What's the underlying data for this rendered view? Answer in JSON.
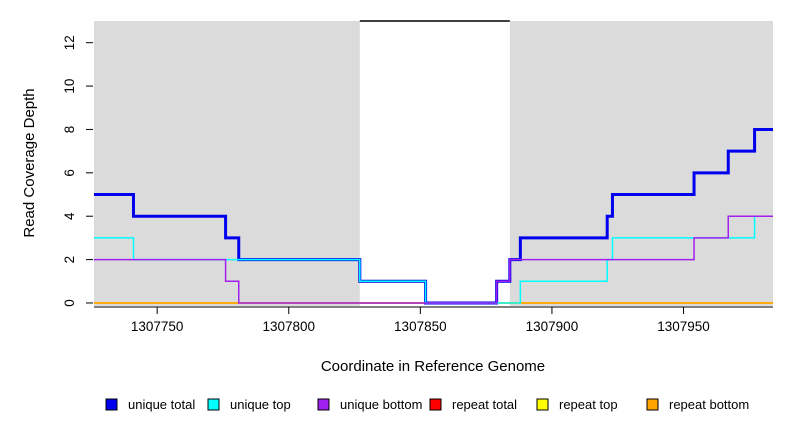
{
  "chart_data": {
    "type": "line",
    "subtype": "step-coverage-plot",
    "title": "",
    "xlabel": "Coordinate in Reference Genome",
    "ylabel": "Read Coverage Depth",
    "xlim": [
      1307726,
      1307984
    ],
    "ylim": [
      -0.14,
      13.0
    ],
    "x_ticks": [
      1307750,
      1307800,
      1307850,
      1307900,
      1307950
    ],
    "y_ticks": [
      0,
      2,
      4,
      6,
      8,
      10,
      12
    ],
    "grid": false,
    "background_color": "#ffffff",
    "shade_color": "#DBDBDB",
    "shaded_regions": [
      {
        "x0": 1307726,
        "x1": 1307827
      },
      {
        "x0": 1307884,
        "x1": 1307984
      }
    ],
    "top_segment": {
      "x0": 1307827,
      "x1": 1307884,
      "y": 13,
      "color": "#000000"
    },
    "series": [
      {
        "name": "repeat total",
        "color": "#FF0000",
        "width": 1.5,
        "points": [
          [
            1307726,
            0
          ],
          [
            1307984,
            0
          ]
        ]
      },
      {
        "name": "repeat top",
        "color": "#FFFF00",
        "width": 1.5,
        "points": [
          [
            1307726,
            0
          ],
          [
            1307984,
            0
          ]
        ]
      },
      {
        "name": "repeat bottom",
        "color": "#FFA500",
        "width": 1.5,
        "points": [
          [
            1307726,
            0
          ],
          [
            1307984,
            0
          ]
        ]
      },
      {
        "name": "unique total",
        "color": "#0000EE",
        "width": 3,
        "points": [
          [
            1307726,
            5
          ],
          [
            1307741,
            4
          ],
          [
            1307776,
            3
          ],
          [
            1307781,
            2
          ],
          [
            1307827,
            1
          ],
          [
            1307852,
            0
          ],
          [
            1307879,
            1
          ],
          [
            1307884,
            2
          ],
          [
            1307888,
            3
          ],
          [
            1307921,
            4
          ],
          [
            1307923,
            5
          ],
          [
            1307954,
            6
          ],
          [
            1307967,
            7
          ],
          [
            1307977,
            8
          ],
          [
            1307984,
            8
          ]
        ]
      },
      {
        "name": "unique top",
        "color": "#00FFFF",
        "width": 1.5,
        "points": [
          [
            1307726,
            3
          ],
          [
            1307741,
            2
          ],
          [
            1307827,
            1
          ],
          [
            1307852,
            0
          ],
          [
            1307888,
            1
          ],
          [
            1307921,
            2
          ],
          [
            1307923,
            3
          ],
          [
            1307977,
            4
          ],
          [
            1307984,
            4
          ]
        ]
      },
      {
        "name": "unique bottom",
        "color": "#A020F0",
        "width": 1.5,
        "points": [
          [
            1307726,
            2
          ],
          [
            1307776,
            1
          ],
          [
            1307781,
            0
          ],
          [
            1307879,
            1
          ],
          [
            1307884,
            2
          ],
          [
            1307954,
            3
          ],
          [
            1307967,
            4
          ],
          [
            1307984,
            4
          ]
        ]
      }
    ],
    "legend": [
      {
        "label": "unique total",
        "color": "#0000EE"
      },
      {
        "label": "unique top",
        "color": "#00FFFF"
      },
      {
        "label": "unique bottom",
        "color": "#A020F0"
      },
      {
        "label": "repeat total",
        "color": "#FF0000"
      },
      {
        "label": "repeat top",
        "color": "#FFFF00"
      },
      {
        "label": "repeat bottom",
        "color": "#FFA500"
      }
    ],
    "legend_position": "bottom"
  }
}
